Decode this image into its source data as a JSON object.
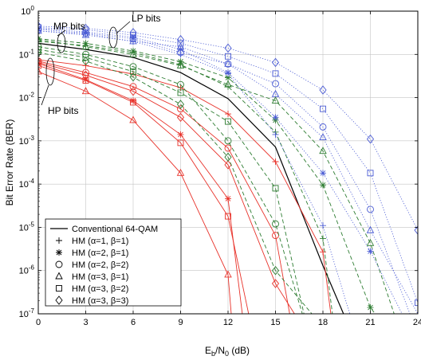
{
  "chart_data": {
    "type": "line",
    "xlabel": {
      "main": "E",
      "sub1": "b",
      "mid": "/N",
      "sub2": "0",
      "unit": " (dB)"
    },
    "ylabel": "Bit Error Rate (BER)",
    "xlim": [
      0,
      24
    ],
    "ylim": [
      1e-07,
      1
    ],
    "yscale": "log",
    "grid": true,
    "x_ticks": [
      "0",
      "3",
      "6",
      "9",
      "12",
      "15",
      "18",
      "21",
      "24"
    ],
    "y_ticks": [
      {
        "exp": "0",
        "v": 0
      },
      {
        "exp": "-1",
        "v": -1
      },
      {
        "exp": "-2",
        "v": -2
      },
      {
        "exp": "-3",
        "v": -3
      },
      {
        "exp": "-4",
        "v": -4
      },
      {
        "exp": "-5",
        "v": -5
      },
      {
        "exp": "-6",
        "v": -6
      },
      {
        "exp": "-7",
        "v": -7
      }
    ],
    "legend": {
      "placement": "bottom-left",
      "entries": [
        {
          "marker": "line",
          "label": "Conventional 64-QAM"
        },
        {
          "marker": "plus",
          "label": "HM (α=1, β=1)"
        },
        {
          "marker": "star",
          "label": "HM (α=2, β=1)"
        },
        {
          "marker": "circle",
          "label": "HM (α=2, β=2)"
        },
        {
          "marker": "triangle",
          "label": "HM (α=3, β=1)"
        },
        {
          "marker": "square",
          "label": "HM (α=3, β=2)"
        },
        {
          "marker": "diamond",
          "label": "HM (α=3, β=3)"
        }
      ]
    },
    "annotations": [
      {
        "text": "MP bits",
        "anchor": "top-left"
      },
      {
        "text": "LP bits",
        "anchor": "top-center"
      },
      {
        "text": "HP bits",
        "anchor": "left"
      }
    ],
    "colors": {
      "hp": "#e8322a",
      "mp": "#2e7d32",
      "lp": "#4a5bd4",
      "conv": "#000000"
    },
    "series": [
      {
        "group": "conv",
        "marker": "line",
        "style": "solid",
        "x": [
          0,
          3,
          6,
          9,
          12,
          15,
          18,
          19.3
        ],
        "y": [
          0.18,
          0.13,
          0.085,
          0.038,
          0.0095,
          0.00072,
          1.3e-06,
          1e-07
        ]
      },
      {
        "group": "hp",
        "marker": "plus",
        "style": "solid",
        "x": [
          0,
          3,
          6,
          9,
          12,
          15,
          18,
          18.5
        ],
        "y": [
          0.075,
          0.055,
          0.035,
          0.017,
          0.0042,
          0.00033,
          2.7e-06,
          1e-07
        ]
      },
      {
        "group": "hp",
        "marker": "star",
        "style": "solid",
        "x": [
          0,
          3,
          6,
          9,
          12,
          12.9
        ],
        "y": [
          0.062,
          0.026,
          0.0085,
          0.0014,
          4.6e-05,
          1e-07
        ]
      },
      {
        "group": "hp",
        "marker": "circle",
        "style": "solid",
        "x": [
          0,
          3,
          6,
          9,
          12,
          15,
          15.9
        ],
        "y": [
          0.07,
          0.038,
          0.018,
          0.0055,
          0.00068,
          6.5e-06,
          1e-07
        ]
      },
      {
        "group": "hp",
        "marker": "triangle",
        "style": "solid",
        "x": [
          0,
          3,
          6,
          9,
          12,
          12.2
        ],
        "y": [
          0.04,
          0.014,
          0.003,
          0.00018,
          8e-07,
          1e-07
        ]
      },
      {
        "group": "hp",
        "marker": "square",
        "style": "solid",
        "x": [
          0,
          3,
          6,
          9,
          12,
          13.3
        ],
        "y": [
          0.055,
          0.025,
          0.0078,
          0.0009,
          1.8e-05,
          1e-07
        ]
      },
      {
        "group": "hp",
        "marker": "diamond",
        "style": "solid",
        "x": [
          0,
          3,
          6,
          9,
          12,
          15,
          16.2
        ],
        "y": [
          0.065,
          0.033,
          0.014,
          0.0035,
          0.00028,
          5e-07,
          1e-07
        ]
      },
      {
        "group": "mp",
        "marker": "plus",
        "style": "dashed",
        "x": [
          0,
          3,
          6,
          9,
          12,
          15,
          18,
          18.6
        ],
        "y": [
          0.2,
          0.16,
          0.11,
          0.058,
          0.018,
          0.0016,
          5.5e-06,
          1e-07
        ]
      },
      {
        "group": "mp",
        "marker": "star",
        "style": "dashed",
        "x": [
          0,
          3,
          6,
          9,
          12,
          15,
          18,
          21,
          21.3
        ],
        "y": [
          0.23,
          0.18,
          0.12,
          0.068,
          0.029,
          0.003,
          9.5e-05,
          1.4e-07,
          1e-07
        ]
      },
      {
        "group": "mp",
        "marker": "circle",
        "style": "dashed",
        "x": [
          0,
          3,
          6,
          9,
          12,
          15,
          16.7
        ],
        "y": [
          0.15,
          0.1,
          0.052,
          0.02,
          0.001,
          1.2e-05,
          1e-07
        ]
      },
      {
        "group": "mp",
        "marker": "triangle",
        "style": "dashed",
        "x": [
          0,
          3,
          6,
          9,
          12,
          15,
          18,
          21,
          22.5
        ],
        "y": [
          0.22,
          0.15,
          0.1,
          0.055,
          0.02,
          0.0085,
          0.00058,
          4.3e-06,
          1e-07
        ]
      },
      {
        "group": "mp",
        "marker": "square",
        "style": "dashed",
        "x": [
          0,
          3,
          6,
          9,
          12,
          15,
          16.8
        ],
        "y": [
          0.13,
          0.085,
          0.04,
          0.013,
          0.0028,
          8e-05,
          1e-07
        ]
      },
      {
        "group": "mp",
        "marker": "diamond",
        "style": "dashed",
        "x": [
          0,
          3,
          6,
          9,
          12,
          15,
          17.3
        ],
        "y": [
          0.11,
          0.07,
          0.03,
          0.007,
          0.00042,
          1e-06,
          1e-07
        ]
      },
      {
        "group": "lp",
        "marker": "plus",
        "style": "dotted",
        "x": [
          0,
          3,
          6,
          9,
          12,
          15,
          18,
          19.7
        ],
        "y": [
          0.35,
          0.3,
          0.2,
          0.1,
          0.036,
          0.0014,
          1.1e-05,
          1e-07
        ]
      },
      {
        "group": "lp",
        "marker": "star",
        "style": "dotted",
        "x": [
          0,
          3,
          6,
          9,
          12,
          15,
          18,
          21,
          23
        ],
        "y": [
          0.4,
          0.33,
          0.25,
          0.13,
          0.038,
          0.0035,
          0.00018,
          2.8e-06,
          1e-07
        ]
      },
      {
        "group": "lp",
        "marker": "circle",
        "style": "dotted",
        "x": [
          0,
          3,
          6,
          9,
          12,
          15,
          18,
          21,
          23.5
        ],
        "y": [
          0.38,
          0.31,
          0.23,
          0.11,
          0.06,
          0.021,
          0.0021,
          2.6e-05,
          1e-07
        ]
      },
      {
        "group": "lp",
        "marker": "triangle",
        "style": "dotted",
        "x": [
          0,
          3,
          6,
          9,
          12,
          15,
          18,
          21,
          24
        ],
        "y": [
          0.35,
          0.28,
          0.2,
          0.15,
          0.06,
          0.012,
          0.0012,
          8.5e-06,
          1e-07
        ]
      },
      {
        "group": "lp",
        "marker": "square",
        "style": "dotted",
        "x": [
          0,
          3,
          6,
          9,
          12,
          15,
          18,
          21,
          24
        ],
        "y": [
          0.42,
          0.37,
          0.28,
          0.18,
          0.09,
          0.036,
          0.0055,
          0.00018,
          1.8e-07
        ]
      },
      {
        "group": "lp",
        "marker": "diamond",
        "style": "dotted",
        "x": [
          0,
          3,
          6,
          9,
          12,
          15,
          18,
          21,
          24
        ],
        "y": [
          0.45,
          0.4,
          0.32,
          0.22,
          0.14,
          0.065,
          0.015,
          0.0011,
          8.6e-06
        ]
      }
    ]
  }
}
